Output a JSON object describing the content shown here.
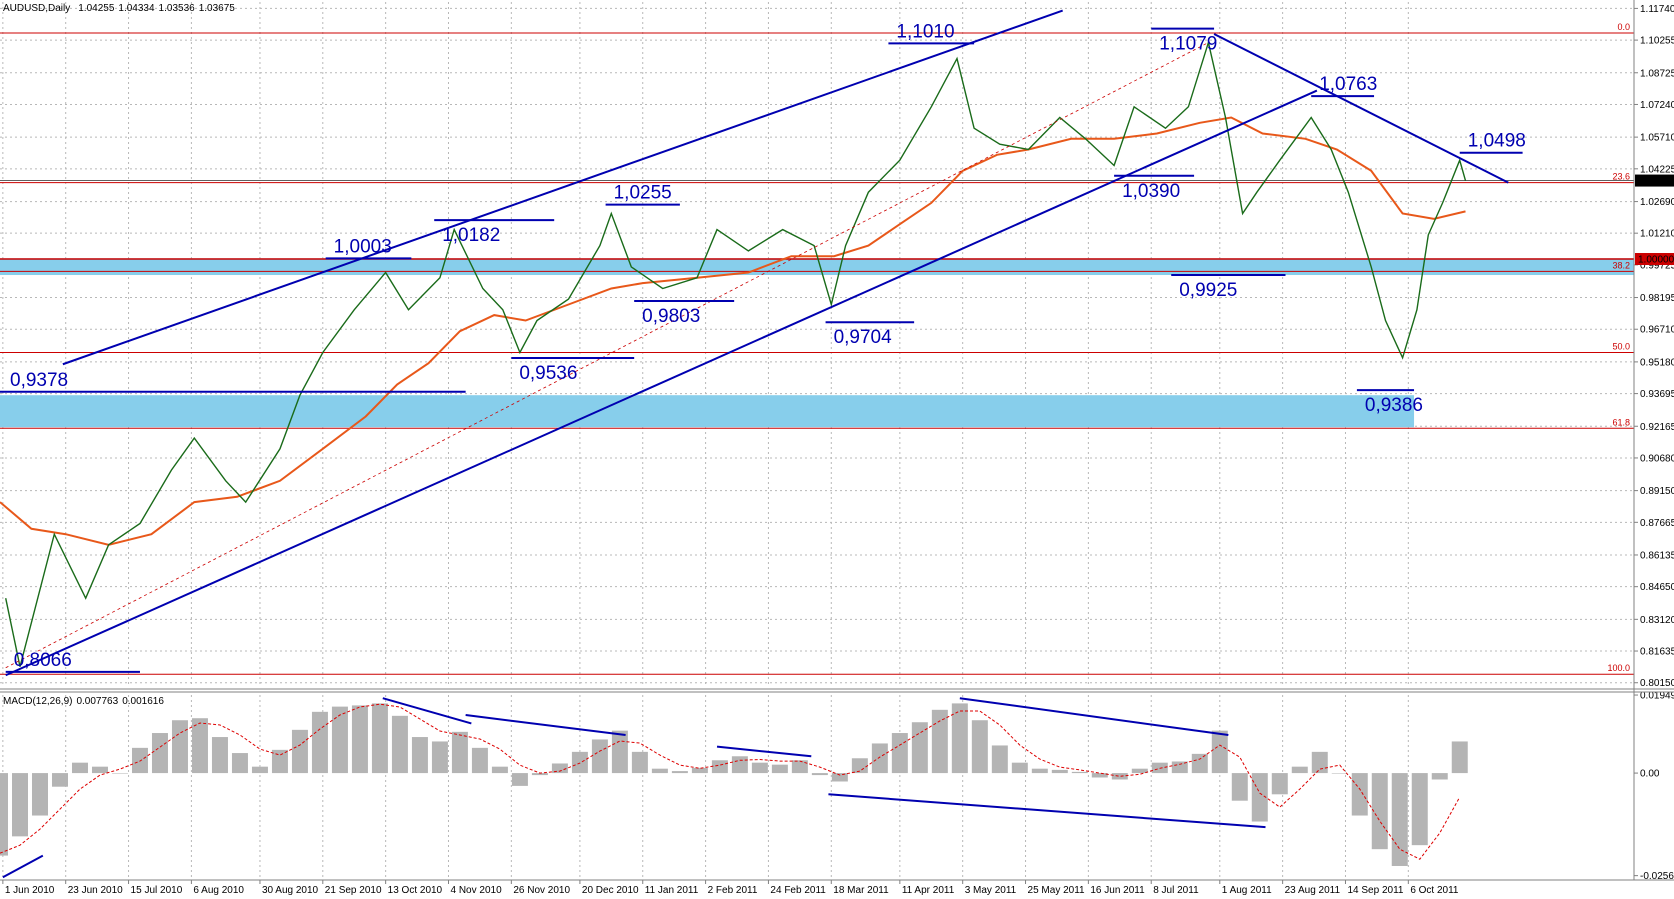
{
  "chart_data": {
    "type": "line",
    "title": "AUDUSD,Daily",
    "ohlc": [
      1.04255,
      1.04334,
      1.03536,
      1.03675
    ],
    "grid": true,
    "xlim": [
      "2010-05-31",
      "2011-12-24"
    ],
    "xticks": [
      {
        "value": "2010-06-01",
        "label": "1 Jun 2010"
      },
      {
        "value": "2010-06-23",
        "label": "23 Jun 2010"
      },
      {
        "value": "2010-07-15",
        "label": "15 Jul 2010"
      },
      {
        "value": "2010-08-06",
        "label": "6 Aug 2010"
      },
      {
        "value": "2010-08-30",
        "label": "30 Aug 2010"
      },
      {
        "value": "2010-09-21",
        "label": "21 Sep 2010"
      },
      {
        "value": "2010-10-13",
        "label": "13 Oct 2010"
      },
      {
        "value": "2010-11-04",
        "label": "4 Nov 2010"
      },
      {
        "value": "2010-11-26",
        "label": "26 Nov 2010"
      },
      {
        "value": "2010-12-20",
        "label": "20 Dec 2010"
      },
      {
        "value": "2011-01-11",
        "label": "11 Jan 2011"
      },
      {
        "value": "2011-02-02",
        "label": "2 Feb 2011"
      },
      {
        "value": "2011-02-24",
        "label": "24 Feb 2011"
      },
      {
        "value": "2011-03-18",
        "label": "18 Mar 2011"
      },
      {
        "value": "2011-04-11",
        "label": "11 Apr 2011"
      },
      {
        "value": "2011-05-03",
        "label": "3 May 2011"
      },
      {
        "value": "2011-05-25",
        "label": "25 May 2011"
      },
      {
        "value": "2011-06-16",
        "label": "16 Jun 2011"
      },
      {
        "value": "2011-07-08",
        "label": "8 Jul 2011"
      },
      {
        "value": "2011-08-01",
        "label": "1 Aug 2011"
      },
      {
        "value": "2011-08-23",
        "label": "23 Aug 2011"
      },
      {
        "value": "2011-09-14",
        "label": "14 Sep 2011"
      },
      {
        "value": "2011-10-06",
        "label": "6 Oct 2011"
      }
    ],
    "ylim": [
      0.7995,
      1.1204
    ],
    "yticks": [
      {
        "value": 1.1174,
        "label": "1.11740"
      },
      {
        "value": 1.10255,
        "label": "1.10255"
      },
      {
        "value": 1.08725,
        "label": "1.08725"
      },
      {
        "value": 1.0724,
        "label": "1.07240"
      },
      {
        "value": 1.0571,
        "label": "1.05710"
      },
      {
        "value": 1.04225,
        "label": "1.04225"
      },
      {
        "value": 1.0269,
        "label": "1.02690"
      },
      {
        "value": 1.0121,
        "label": "1.01210"
      },
      {
        "value": 0.99725,
        "label": "0.99725"
      },
      {
        "value": 0.98195,
        "label": "0.98195"
      },
      {
        "value": 0.9671,
        "label": "0.96710"
      },
      {
        "value": 0.9518,
        "label": "0.95180"
      },
      {
        "value": 0.93695,
        "label": "0.93695"
      },
      {
        "value": 0.92165,
        "label": "0.92165"
      },
      {
        "value": 0.9068,
        "label": "0.90680"
      },
      {
        "value": 0.8915,
        "label": "0.89150"
      },
      {
        "value": 0.87665,
        "label": "0.87665"
      },
      {
        "value": 0.86135,
        "label": "0.86135"
      },
      {
        "value": 0.8465,
        "label": "0.84650"
      },
      {
        "value": 0.8312,
        "label": "0.83120"
      },
      {
        "value": 0.81635,
        "label": "0.81635"
      },
      {
        "value": 0.8015,
        "label": "0.80150"
      }
    ],
    "price": {
      "color": "#1a6b1a",
      "x": [
        "2010-06-02",
        "2010-06-07",
        "2010-06-19",
        "2010-06-30",
        "2010-07-08",
        "2010-07-19",
        "2010-07-30",
        "2010-08-07",
        "2010-08-18",
        "2010-08-25",
        "2010-09-06",
        "2010-09-13",
        "2010-09-21",
        "2010-10-02",
        "2010-10-13",
        "2010-10-21",
        "2010-11-01",
        "2010-11-06",
        "2010-11-16",
        "2010-11-23",
        "2010-11-29",
        "2010-12-05",
        "2010-12-16",
        "2010-12-27",
        "2010-12-31",
        "2011-01-07",
        "2011-01-18",
        "2011-01-30",
        "2011-02-06",
        "2011-02-17",
        "2011-03-01",
        "2011-03-12",
        "2011-03-18",
        "2011-03-23",
        "2011-03-31",
        "2011-04-11",
        "2011-04-22",
        "2011-05-01",
        "2011-05-07",
        "2011-05-16",
        "2011-05-26",
        "2011-06-06",
        "2011-06-15",
        "2011-06-25",
        "2011-07-02",
        "2011-07-13",
        "2011-07-21",
        "2011-07-28",
        "2011-08-03",
        "2011-08-09",
        "2011-08-14",
        "2011-08-22",
        "2011-09-02",
        "2011-09-09",
        "2011-09-15",
        "2011-09-23",
        "2011-09-28",
        "2011-10-04",
        "2011-10-09",
        "2011-10-13",
        "2011-10-18",
        "2011-10-24",
        "2011-10-26"
      ],
      "values": [
        0.8411,
        0.809,
        0.8711,
        0.8411,
        0.8661,
        0.8761,
        0.9011,
        0.9161,
        0.8961,
        0.8861,
        0.9111,
        0.9362,
        0.9562,
        0.9762,
        0.9937,
        0.9762,
        0.9912,
        1.0138,
        0.9862,
        0.9762,
        0.9562,
        0.9712,
        0.9812,
        1.0063,
        1.0213,
        0.9963,
        0.9862,
        0.9912,
        1.0138,
        1.0038,
        1.0138,
        1.0063,
        0.9787,
        1.0063,
        1.0313,
        1.0463,
        1.0713,
        1.0939,
        1.0613,
        1.0538,
        1.0513,
        1.0663,
        1.0563,
        1.0438,
        1.0713,
        1.0613,
        1.0713,
        1.1014,
        1.0663,
        1.0213,
        1.0313,
        1.0463,
        1.0663,
        1.0513,
        1.0313,
        0.9963,
        0.9712,
        0.9537,
        0.9762,
        1.0113,
        1.0263,
        1.0463,
        1.0367
      ]
    },
    "moving_average": {
      "color": "#e8581a",
      "x": [
        "2010-05-31",
        "2010-06-11",
        "2010-06-23",
        "2010-07-08",
        "2010-07-23",
        "2010-08-07",
        "2010-08-22",
        "2010-09-06",
        "2010-09-21",
        "2010-10-06",
        "2010-10-17",
        "2010-10-28",
        "2010-11-08",
        "2010-11-20",
        "2010-12-01",
        "2010-12-16",
        "2010-12-31",
        "2011-01-11",
        "2011-01-30",
        "2011-02-17",
        "2011-03-04",
        "2011-03-19",
        "2011-03-31",
        "2011-04-11",
        "2011-04-22",
        "2011-05-03",
        "2011-05-15",
        "2011-05-26",
        "2011-06-10",
        "2011-06-25",
        "2011-07-10",
        "2011-07-25",
        "2011-08-05",
        "2011-08-16",
        "2011-08-31",
        "2011-09-11",
        "2011-09-23",
        "2011-10-04",
        "2011-10-15",
        "2011-10-26"
      ],
      "values": [
        0.8861,
        0.8736,
        0.8711,
        0.8661,
        0.8711,
        0.8861,
        0.8886,
        0.8961,
        0.9111,
        0.9262,
        0.9412,
        0.9512,
        0.9662,
        0.9737,
        0.9712,
        0.9787,
        0.9862,
        0.9887,
        0.9912,
        0.9937,
        1.0013,
        1.0013,
        1.0063,
        1.0163,
        1.0263,
        1.0413,
        1.0488,
        1.0513,
        1.0563,
        1.0563,
        1.0588,
        1.0638,
        1.0663,
        1.0588,
        1.0563,
        1.0513,
        1.0413,
        1.0213,
        1.0188,
        1.0223
      ]
    },
    "zones": [
      {
        "from": "2010-05-31",
        "to": "2011-12-24",
        "low": 0.9925,
        "high": 1.0003,
        "color": "#87ceeb"
      },
      {
        "from": "2010-05-31",
        "to": "2011-10-08",
        "low": 0.9212,
        "high": 0.9362,
        "color": "#87ceeb"
      }
    ],
    "fib": [
      {
        "label": "0.0",
        "price": 1.1059
      },
      {
        "label": "23.6",
        "price": 1.0358
      },
      {
        "label": "38.2",
        "price": 0.9942
      },
      {
        "label": "50.0",
        "price": 0.9562
      },
      {
        "label": "61.8",
        "price": 0.9207
      },
      {
        "label": "100.0",
        "price": 0.8055
      }
    ],
    "fib_color": "#cc0000",
    "price_markers": [
      {
        "value": 1.0,
        "label": "1.00000",
        "color": "#cc0000"
      },
      {
        "value": 1.03675,
        "label": "1.03675",
        "color": "#000000"
      }
    ],
    "trendline_color": "#0000b0",
    "trendlines": [
      {
        "x": [
          "2010-06-22",
          "2011-06-07"
        ],
        "y": [
          0.9507,
          1.1164
        ],
        "dashed": false
      },
      {
        "x": [
          "2010-06-02",
          "2011-09-04"
        ],
        "y": [
          0.805,
          1.0789
        ],
        "dashed": false
      },
      {
        "x": [
          "2011-07-30",
          "2011-11-10"
        ],
        "y": [
          1.1054,
          1.0358
        ],
        "dashed": false
      },
      {
        "x": [
          "2010-06-02",
          "2011-07-28"
        ],
        "y": [
          0.8085,
          1.1014
        ],
        "dashed": true
      }
    ],
    "levels": [
      {
        "value": 1.101,
        "label": "1,1010",
        "from": "2011-04-07",
        "to": "2011-05-07",
        "side": "above"
      },
      {
        "value": 1.1079,
        "label": "1,1079",
        "from": "2011-07-08",
        "to": "2011-07-30",
        "side": "below"
      },
      {
        "value": 1.0763,
        "label": "1,0763",
        "from": "2011-09-02",
        "to": "2011-09-24",
        "side": "above"
      },
      {
        "value": 1.0498,
        "label": "1,0498",
        "from": "2011-10-24",
        "to": "2011-11-15",
        "side": "above"
      },
      {
        "value": 1.039,
        "label": "1,0390",
        "from": "2011-06-25",
        "to": "2011-07-23",
        "side": "below"
      },
      {
        "value": 1.0255,
        "label": "1,0255",
        "from": "2010-12-29",
        "to": "2011-01-24",
        "side": "above"
      },
      {
        "value": 1.0182,
        "label": "1,0182",
        "from": "2010-10-30",
        "to": "2010-12-11",
        "side": "below"
      },
      {
        "value": 1.0003,
        "label": "1,0003",
        "from": "2010-09-22",
        "to": "2010-10-22",
        "side": "above"
      },
      {
        "value": 0.9925,
        "label": "0,9925",
        "from": "2011-07-15",
        "to": "2011-08-24",
        "side": "below"
      },
      {
        "value": 0.9803,
        "label": "0,9803",
        "from": "2011-01-08",
        "to": "2011-02-12",
        "side": "below"
      },
      {
        "value": 0.9704,
        "label": "0,9704",
        "from": "2011-03-16",
        "to": "2011-04-16",
        "side": "below"
      },
      {
        "value": 0.9536,
        "label": "0,9536",
        "from": "2010-11-26",
        "to": "2011-01-08",
        "side": "below"
      },
      {
        "value": 0.9378,
        "label": "0,9378",
        "from": "2010-05-31",
        "to": "2010-11-10",
        "side": "above"
      },
      {
        "value": 0.9386,
        "label": "0,9386",
        "from": "2011-09-18",
        "to": "2011-10-08",
        "side": "below"
      },
      {
        "value": 0.8066,
        "label": "0,8066",
        "from": "2010-06-02",
        "to": "2010-07-19",
        "side": "above"
      }
    ],
    "macd": {
      "title": "MACD(12,26,9)",
      "readout": [
        0.007763,
        0.001616
      ],
      "ylim": [
        -0.0267,
        0.0195
      ],
      "yticks": [
        0.019491,
        {
          "value": 0,
          "label": "0.00"
        },
        -0.02561
      ],
      "histogram_color": "#b4b4b4",
      "signal_color": "#dd0000",
      "x": [
        "2010-05-31",
        "2010-06-07",
        "2010-06-14",
        "2010-06-21",
        "2010-06-28",
        "2010-07-05",
        "2010-07-12",
        "2010-07-19",
        "2010-07-26",
        "2010-08-02",
        "2010-08-09",
        "2010-08-16",
        "2010-08-23",
        "2010-08-30",
        "2010-09-06",
        "2010-09-13",
        "2010-09-20",
        "2010-09-27",
        "2010-10-04",
        "2010-10-11",
        "2010-10-18",
        "2010-10-25",
        "2010-11-01",
        "2010-11-08",
        "2010-11-15",
        "2010-11-22",
        "2010-11-29",
        "2010-12-06",
        "2010-12-13",
        "2010-12-20",
        "2010-12-27",
        "2011-01-03",
        "2011-01-10",
        "2011-01-17",
        "2011-01-24",
        "2011-01-31",
        "2011-02-07",
        "2011-02-14",
        "2011-02-21",
        "2011-02-28",
        "2011-03-07",
        "2011-03-14",
        "2011-03-21",
        "2011-03-28",
        "2011-04-04",
        "2011-04-11",
        "2011-04-18",
        "2011-04-25",
        "2011-05-02",
        "2011-05-09",
        "2011-05-16",
        "2011-05-23",
        "2011-05-30",
        "2011-06-06",
        "2011-06-13",
        "2011-06-20",
        "2011-06-27",
        "2011-07-04",
        "2011-07-11",
        "2011-07-18",
        "2011-07-25",
        "2011-08-01",
        "2011-08-08",
        "2011-08-15",
        "2011-08-22",
        "2011-08-29",
        "2011-09-05",
        "2011-09-12",
        "2011-09-19",
        "2011-09-26",
        "2011-10-03",
        "2011-10-10",
        "2011-10-17",
        "2011-10-24"
      ],
      "histogram": [
        -0.0206,
        -0.0158,
        -0.0106,
        -0.0034,
        0.0026,
        0.0016,
        0.0,
        0.0063,
        0.01,
        0.0132,
        0.0137,
        0.009,
        0.005,
        0.0016,
        0.0058,
        0.0108,
        0.0153,
        0.0166,
        0.0169,
        0.0174,
        0.0143,
        0.009,
        0.0079,
        0.0103,
        0.0063,
        0.0016,
        -0.0032,
        -0.0005,
        0.0024,
        0.0053,
        0.0084,
        0.0106,
        0.0053,
        0.0011,
        0.0005,
        0.0013,
        0.0032,
        0.0042,
        0.0026,
        0.0021,
        0.0032,
        -0.0005,
        -0.0021,
        0.0037,
        0.0074,
        0.01,
        0.0127,
        0.0158,
        0.0174,
        0.0132,
        0.0069,
        0.0026,
        0.0011,
        0.0008,
        0.0003,
        -0.0011,
        -0.0016,
        0.0011,
        0.0026,
        0.0029,
        0.0048,
        0.0106,
        -0.0069,
        -0.0121,
        -0.0053,
        0.0016,
        0.0053,
        0.0,
        -0.0106,
        -0.019,
        -0.0232,
        -0.018,
        -0.0016,
        0.0079
      ],
      "signal": [
        -0.02,
        -0.018,
        -0.014,
        -0.009,
        -0.004,
        -0.0005,
        0.001,
        0.003,
        0.0065,
        0.01,
        0.0125,
        0.012,
        0.0095,
        0.006,
        0.0045,
        0.007,
        0.011,
        0.0145,
        0.0165,
        0.0172,
        0.0165,
        0.0135,
        0.0105,
        0.0095,
        0.0085,
        0.006,
        0.002,
        0.0,
        0.0005,
        0.0025,
        0.0055,
        0.008,
        0.0075,
        0.0045,
        0.002,
        0.0012,
        0.002,
        0.0032,
        0.0034,
        0.003,
        0.003,
        0.0015,
        -0.0005,
        0.0005,
        0.004,
        0.007,
        0.01,
        0.013,
        0.0155,
        0.0155,
        0.012,
        0.007,
        0.0035,
        0.0015,
        0.0008,
        0.0,
        -0.0008,
        -0.0003,
        0.0012,
        0.0022,
        0.0035,
        0.007,
        0.004,
        -0.005,
        -0.0085,
        -0.004,
        0.001,
        0.002,
        -0.004,
        -0.012,
        -0.019,
        -0.0215,
        -0.015,
        -0.006
      ],
      "trendlines": [
        {
          "x": [
            "2010-10-12",
            "2010-11-12"
          ],
          "y": [
            0.0187,
            0.0124
          ]
        },
        {
          "x": [
            "2010-11-10",
            "2011-01-05"
          ],
          "y": [
            0.0145,
            0.0095
          ]
        },
        {
          "x": [
            "2011-02-06",
            "2011-03-11"
          ],
          "y": [
            0.0066,
            0.0042
          ]
        },
        {
          "x": [
            "2011-03-17",
            "2011-08-17"
          ],
          "y": [
            -0.0053,
            -0.0135
          ]
        },
        {
          "x": [
            "2011-05-02",
            "2011-08-04"
          ],
          "y": [
            0.0187,
            0.0095
          ]
        },
        {
          "x": [
            "2010-06-01",
            "2010-06-15"
          ],
          "y": [
            -0.026,
            -0.0206
          ]
        }
      ]
    }
  }
}
